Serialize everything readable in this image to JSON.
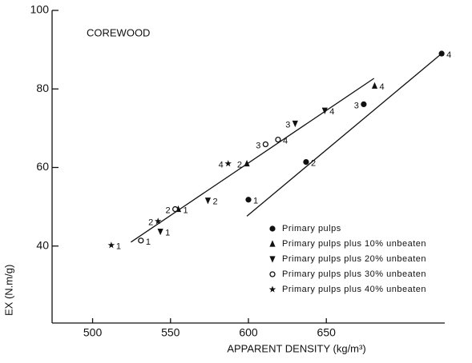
{
  "chart_data": {
    "type": "scatter",
    "title": "COREWOOD",
    "x_label": "APPARENT DENSITY (kg/m³)",
    "y_label": "EX (N.m/g)",
    "xlim": [
      474,
      726
    ],
    "ylim": [
      20.4,
      100
    ],
    "xticks": [
      500,
      550,
      600,
      650
    ],
    "yticks": [
      40,
      60,
      80,
      100
    ],
    "legend": "lower right",
    "series": [
      {
        "name": "Primary pulps",
        "marker": "circle-filled",
        "color": "#111",
        "x": [
          600,
          637,
          674,
          724
        ],
        "values": [
          51.8,
          61.4,
          76.1,
          89.0
        ],
        "labels": [
          "1",
          "2",
          "3",
          "4"
        ]
      },
      {
        "name": "Primary pulps plus 10% unbeaten",
        "marker": "triangle-up",
        "color": "#111",
        "x": [
          555,
          599,
          681
        ],
        "values": [
          49.4,
          61.0,
          80.8
        ],
        "labels": [
          "1",
          "2",
          "4"
        ]
      },
      {
        "name": "Primary pulps plus 20% unbeaten",
        "marker": "triangle-down",
        "color": "#111",
        "x": [
          543.5,
          574,
          630,
          649
        ],
        "values": [
          43.7,
          51.6,
          71.2,
          74.5
        ],
        "labels": [
          "1",
          "2",
          "3",
          "4"
        ]
      },
      {
        "name": "Primary pulps plus 30% unbeaten",
        "marker": "circle-open",
        "color": "#111",
        "x": [
          531,
          553,
          611,
          619
        ],
        "values": [
          41.4,
          49.4,
          65.9,
          67.1
        ],
        "labels": [
          "1",
          "2",
          "3",
          "4"
        ]
      },
      {
        "name": "Primary pulps plus 40% unbeaten",
        "marker": "star",
        "color": "#111",
        "x": [
          512,
          542,
          587
        ],
        "values": [
          40.2,
          46.3,
          61.0
        ],
        "labels": [
          "1",
          "2",
          "4"
        ]
      }
    ],
    "fit_lines": [
      {
        "x": [
          524.6,
          680.6
        ],
        "values": [
          41.0,
          82.7
        ]
      },
      {
        "x": [
          599,
          724
        ],
        "values": [
          47.6,
          89.0
        ]
      }
    ]
  }
}
